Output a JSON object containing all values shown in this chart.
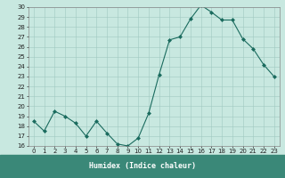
{
  "x": [
    0,
    1,
    2,
    3,
    4,
    5,
    6,
    7,
    8,
    9,
    10,
    11,
    12,
    13,
    14,
    15,
    16,
    17,
    18,
    19,
    20,
    21,
    22,
    23
  ],
  "y": [
    18.5,
    17.5,
    19.5,
    19.0,
    18.3,
    17.0,
    18.5,
    17.3,
    16.2,
    16.0,
    16.8,
    19.3,
    23.2,
    26.7,
    27.0,
    28.8,
    30.2,
    29.5,
    28.7,
    28.7,
    26.8,
    25.8,
    24.2,
    23.0
  ],
  "xlabel": "Humidex (Indice chaleur)",
  "ylim": [
    16,
    30
  ],
  "xlim": [
    -0.5,
    23.5
  ],
  "yticks": [
    16,
    17,
    18,
    19,
    20,
    21,
    22,
    23,
    24,
    25,
    26,
    27,
    28,
    29,
    30
  ],
  "xticks": [
    0,
    1,
    2,
    3,
    4,
    5,
    6,
    7,
    8,
    9,
    10,
    11,
    12,
    13,
    14,
    15,
    16,
    17,
    18,
    19,
    20,
    21,
    22,
    23
  ],
  "line_color": "#1a6b5e",
  "marker_color": "#1a6b5e",
  "bg_color": "#c8e8e0",
  "grid_color": "#a0c8c0",
  "xlabel_bg": "#3a8878",
  "font_color": "#222222",
  "tick_fontsize": 5.0,
  "xlabel_fontsize": 6.0
}
